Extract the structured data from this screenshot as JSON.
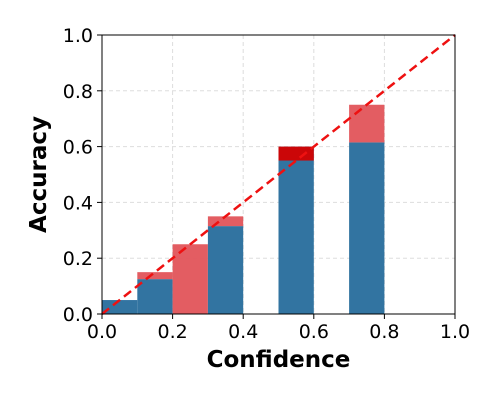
{
  "chart_data": {
    "type": "bar",
    "title": "",
    "xlabel": "Confidence",
    "ylabel": "Accuracy",
    "xlim": [
      0.0,
      1.0
    ],
    "ylim": [
      0.0,
      1.0
    ],
    "grid": true,
    "bin_width": 0.1,
    "xticks": [
      "0.0",
      "0.2",
      "0.4",
      "0.6",
      "0.8",
      "1.0"
    ],
    "yticks": [
      "0.0",
      "0.2",
      "0.4",
      "0.6",
      "0.8",
      "1.0"
    ],
    "bins": [
      {
        "x": 0.0,
        "accuracy": 0.05,
        "confidence": 0.05
      },
      {
        "x": 0.1,
        "accuracy": 0.125,
        "confidence": 0.15
      },
      {
        "x": 0.2,
        "accuracy": 0.0,
        "confidence": 0.25
      },
      {
        "x": 0.3,
        "accuracy": 0.315,
        "confidence": 0.35
      },
      {
        "x": 0.5,
        "accuracy": 0.6,
        "confidence": 0.55
      },
      {
        "x": 0.7,
        "accuracy": 0.615,
        "confidence": 0.75
      }
    ],
    "colors": {
      "accuracy_bar": "#3274a1",
      "gap_over": "#e1545a",
      "gap_under": "#d40000",
      "diagonal": "#ee1111",
      "grid": "#dddddd"
    }
  }
}
